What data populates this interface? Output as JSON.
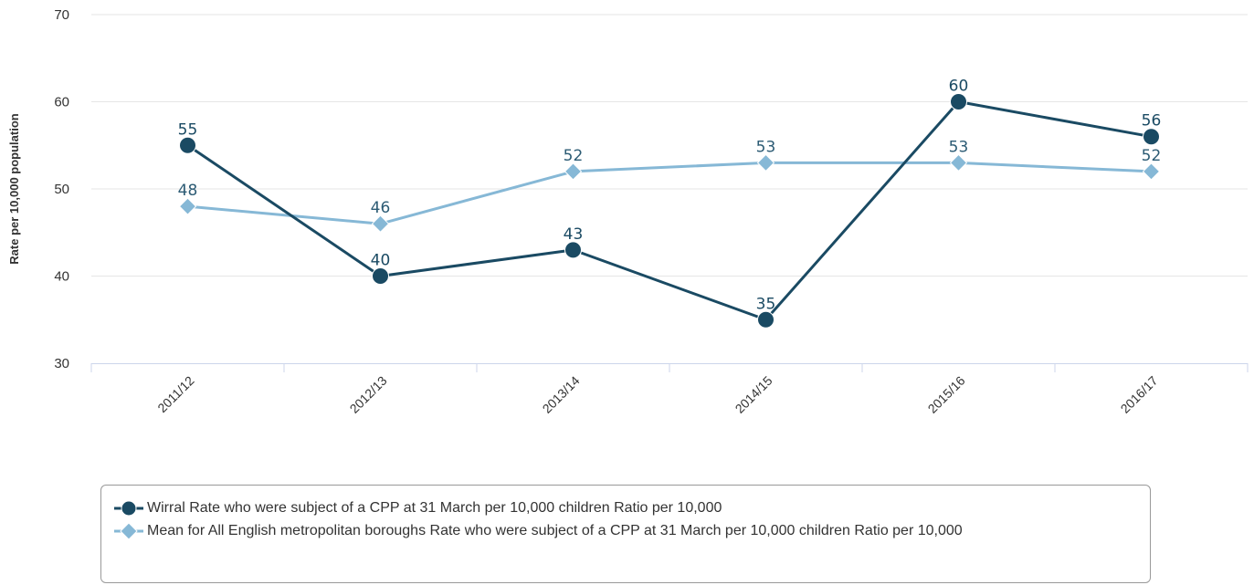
{
  "chart_data": {
    "type": "line",
    "categories": [
      "2011/12",
      "2012/13",
      "2013/14",
      "2014/15",
      "2015/16",
      "2016/17"
    ],
    "ylabel": "Rate per 10,000 population",
    "ylim": [
      30,
      70
    ],
    "yticks": [
      "30",
      "40",
      "50",
      "60",
      "70"
    ],
    "grid": true,
    "legend_position": "bottom",
    "series": [
      {
        "name": "Wirral Rate who were subject of a CPP at 31 March per 10,000 children Ratio per 10,000",
        "values": [
          55,
          40,
          43,
          35,
          60,
          56
        ],
        "labels": [
          "55",
          "40",
          "43",
          "35",
          "60",
          "56"
        ],
        "color": "#1a4a63",
        "marker": "circle"
      },
      {
        "name": "Mean for All English metropolitan boroughs Rate who were subject of a CPP at 31 March per 10,000 children Ratio per 10,000",
        "values": [
          48,
          46,
          52,
          53,
          53,
          52
        ],
        "labels": [
          "48",
          "46",
          "52",
          "53",
          "53",
          "52"
        ],
        "color": "#86b8d6",
        "marker": "diamond"
      }
    ]
  }
}
